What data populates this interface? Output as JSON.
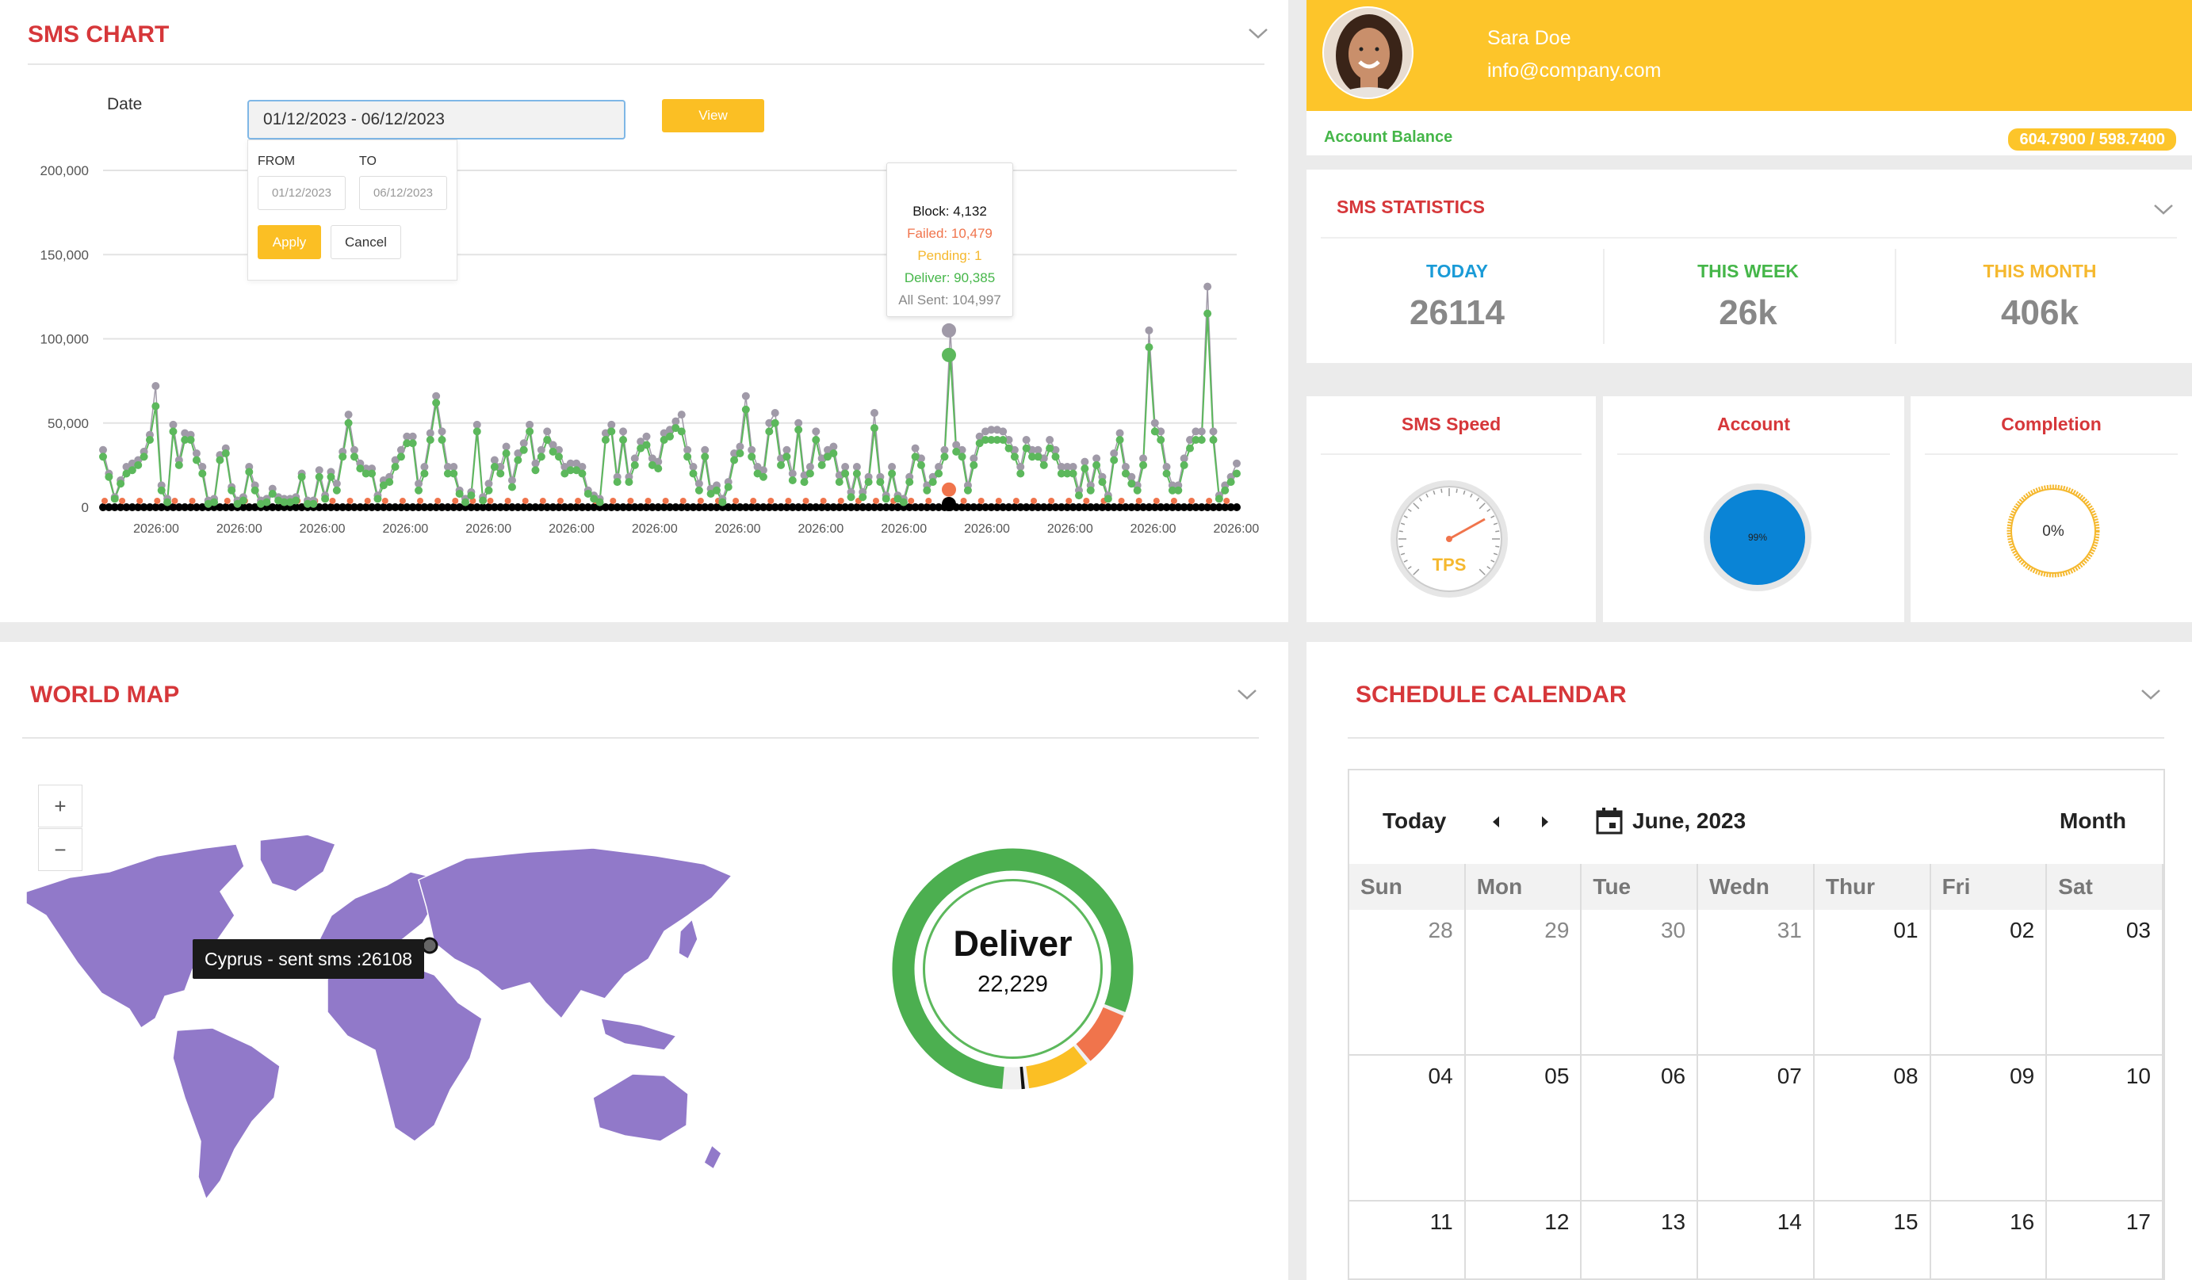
{
  "sms_chart": {
    "title": "SMS CHART",
    "date_label": "Date",
    "date_range": "01/12/2023 - 06/12/2023",
    "view_label": "View",
    "from_label": "FROM",
    "to_label": "TO",
    "from_value": "01/12/2023",
    "to_value": "06/12/2023",
    "apply_label": "Apply",
    "cancel_label": "Cancel",
    "tooltip": {
      "block": "Block: 4,132",
      "failed": "Failed: 10,479",
      "pending": "Pending: 1",
      "deliver": "Deliver: 90,385",
      "all_sent": "All Sent: 104,997"
    },
    "colors": {
      "deliver": "#5cb85c",
      "all": "#a09aa8",
      "failed": "#f0744c",
      "pending": "#f5b82e",
      "block": "#000000"
    }
  },
  "chart_data": {
    "type": "line",
    "ylim": [
      0,
      200000
    ],
    "yticks": [
      "200,000",
      "150,000",
      "100,000",
      "50,000",
      "0"
    ],
    "xticks": [
      "2026:00",
      "2026:00",
      "2026:00",
      "2026:00",
      "2026:00",
      "2026:00",
      "2026:00",
      "2026:00",
      "2026:00",
      "2026:00",
      "2026:00",
      "2026:00",
      "2026:00",
      "2026:00"
    ],
    "series": [
      {
        "name": "Deliver",
        "values": [
          30000,
          18000,
          5000,
          14000,
          20000,
          22000,
          25000,
          30000,
          40000,
          60000,
          10000,
          3000,
          45000,
          25000,
          40000,
          40000,
          28000,
          20000,
          2000,
          3000,
          28000,
          32000,
          10000,
          2000,
          4000,
          21000,
          10000,
          2000,
          3000,
          8000,
          4000,
          3000,
          3000,
          4000,
          18000,
          2000,
          2000,
          18000,
          5000,
          18000,
          10000,
          30000,
          50000,
          30000,
          23000,
          20000,
          20000,
          5000,
          13000,
          15000,
          24000,
          30000,
          38000,
          38000,
          10000,
          20000,
          40000,
          62000,
          40000,
          20000,
          20000,
          8000,
          3000,
          7000,
          45000,
          4000,
          10000,
          24000,
          20000,
          32000,
          12000,
          28000,
          34000,
          45000,
          22000,
          30000,
          40000,
          33000,
          30000,
          20000,
          22000,
          22000,
          20000,
          8000,
          5000,
          3000,
          40000,
          45000,
          15000,
          40000,
          15000,
          25000,
          35000,
          37000,
          25000,
          23000,
          40000,
          42000,
          47000,
          45000,
          30000,
          20000,
          10000,
          30000,
          8000,
          10000,
          3000,
          12000,
          28000,
          32000,
          58000,
          30000,
          20000,
          18000,
          45000,
          50000,
          25000,
          30000,
          16000,
          46000,
          15000,
          20000,
          40000,
          25000,
          30000,
          32000,
          15000,
          20000,
          6000,
          20000,
          6000,
          15000,
          47000,
          15000,
          5000,
          20000,
          5000,
          3000,
          15000,
          30000,
          25000,
          10000,
          15000,
          20000,
          30000,
          90000,
          33000,
          30000,
          10000,
          25000,
          38000,
          40000,
          40000,
          40000,
          40000,
          35000,
          30000,
          20000,
          35000,
          30000,
          30000,
          25000,
          35000,
          30000,
          20000,
          20000,
          20000,
          7000,
          23000,
          10000,
          25000,
          15000,
          5000,
          28000,
          40000,
          20000,
          14000,
          10000,
          25000,
          95000,
          45000,
          40000,
          20000,
          10000,
          10000,
          25000,
          35000,
          40000,
          40000,
          115000,
          40000,
          5000,
          10000,
          15000,
          20000
        ]
      },
      {
        "name": "All Sent",
        "values": [
          34000,
          20000,
          6000,
          16000,
          24000,
          26000,
          28000,
          33000,
          43000,
          72000,
          13000,
          5000,
          49000,
          28000,
          44000,
          43000,
          32000,
          24000,
          4000,
          5000,
          31000,
          35000,
          12000,
          4000,
          6000,
          24000,
          13000,
          4000,
          5000,
          11000,
          6000,
          5000,
          5000,
          6000,
          20000,
          4000,
          4000,
          22000,
          7000,
          21000,
          14000,
          33000,
          55000,
          34000,
          26000,
          23000,
          23000,
          7000,
          16000,
          18000,
          28000,
          34000,
          42000,
          42000,
          14000,
          24000,
          44000,
          66000,
          45000,
          24000,
          24000,
          10000,
          5000,
          9000,
          49000,
          6000,
          14000,
          28000,
          24000,
          36000,
          16000,
          32000,
          38000,
          49000,
          26000,
          34000,
          45000,
          37000,
          34000,
          24000,
          26000,
          26000,
          24000,
          10000,
          7000,
          5000,
          44000,
          49000,
          18000,
          45000,
          18000,
          29000,
          39000,
          42000,
          29000,
          27000,
          44000,
          46000,
          51000,
          55000,
          34000,
          24000,
          14000,
          34000,
          11000,
          13000,
          5000,
          15000,
          32000,
          36000,
          66000,
          34000,
          24000,
          22000,
          50000,
          56000,
          29000,
          34000,
          20000,
          50000,
          19000,
          24000,
          45000,
          29000,
          34000,
          36000,
          19000,
          24000,
          9000,
          24000,
          9000,
          18000,
          56000,
          18000,
          7000,
          24000,
          7000,
          5000,
          18000,
          35000,
          29000,
          13000,
          18000,
          24000,
          34000,
          105000,
          37000,
          34000,
          13000,
          29000,
          42000,
          45000,
          46000,
          46000,
          45000,
          40000,
          34000,
          24000,
          40000,
          34000,
          34000,
          29000,
          40000,
          34000,
          24000,
          24000,
          24000,
          10000,
          27000,
          13000,
          29000,
          18000,
          7000,
          32000,
          44000,
          24000,
          18000,
          13000,
          29000,
          105000,
          50000,
          45000,
          24000,
          13000,
          13000,
          29000,
          40000,
          45000,
          45000,
          131000,
          45000,
          7000,
          13000,
          18000,
          26000
        ]
      }
    ]
  },
  "profile": {
    "name": "Sara Doe",
    "email": "info@company.com",
    "balance_label": "Account Balance",
    "balance_value": "604.7900 / 598.7400"
  },
  "stats": {
    "title": "SMS STATISTICS",
    "today_label": "TODAY",
    "today_value": "26114",
    "week_label": "THIS WEEK",
    "week_value": "26k",
    "month_label": "THIS MONTH",
    "month_value": "406k",
    "colors": {
      "today": "#1a9bd7",
      "week": "#45b649",
      "month": "#f5b82e"
    }
  },
  "gauges": {
    "speed_title": "SMS Speed",
    "speed_unit": "TPS",
    "account_title": "Account",
    "account_value": "99%",
    "account_level": 0.99,
    "completion_title": "Completion",
    "completion_value": "0%",
    "completion_level": 0
  },
  "world_map": {
    "title": "WORLD MAP",
    "zoom_in": "+",
    "zoom_out": "−",
    "tooltip": "Cyprus - sent sms :26108",
    "donut_title": "Deliver",
    "donut_value": "22,229",
    "donut_shares": {
      "deliver": 0.8,
      "pending": 0.09,
      "failed": 0.08,
      "block": 0.01
    }
  },
  "calendar": {
    "title": "SCHEDULE CALENDAR",
    "today_label": "Today",
    "month_label": "June, 2023",
    "view_label": "Month",
    "weekdays": [
      "Sun",
      "Mon",
      "Tue",
      "Wedn",
      "Thur",
      "Fri",
      "Sat"
    ],
    "weeks": [
      [
        "28",
        "29",
        "30",
        "31",
        "01",
        "02",
        "03"
      ],
      [
        "04",
        "05",
        "06",
        "07",
        "08",
        "09",
        "10"
      ],
      [
        "11",
        "12",
        "13",
        "14",
        "15",
        "16",
        "17"
      ]
    ]
  }
}
